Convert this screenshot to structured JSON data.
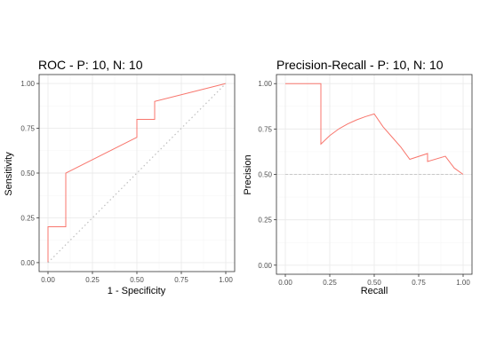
{
  "chart_data": [
    {
      "type": "line",
      "title": "ROC - P: 10, N: 10",
      "xlabel": "1 - Specificity",
      "ylabel": "Sensitivity",
      "xlim": [
        0,
        1
      ],
      "ylim": [
        0,
        1
      ],
      "x_ticks": [
        "0.00",
        "0.25",
        "0.50",
        "0.75",
        "1.00"
      ],
      "y_ticks": [
        "0.00",
        "0.25",
        "0.50",
        "0.75",
        "1.00"
      ],
      "grid": true,
      "legend": "none",
      "series": [
        {
          "color": "#F8766D",
          "line": "solid",
          "points": [
            [
              0,
              0
            ],
            [
              0,
              0.2
            ],
            [
              0.1,
              0.2
            ],
            [
              0.1,
              0.5
            ],
            [
              0.5,
              0.7
            ],
            [
              0.5,
              0.8
            ],
            [
              0.6,
              0.8
            ],
            [
              0.6,
              0.9
            ],
            [
              1,
              1
            ]
          ]
        },
        {
          "color": "#bfbfbf",
          "line": "dotted",
          "points": [
            [
              0,
              0
            ],
            [
              1,
              1
            ]
          ]
        }
      ]
    },
    {
      "type": "line",
      "title": "Precision-Recall - P: 10, N: 10",
      "xlabel": "Recall",
      "ylabel": "Precision",
      "xlim": [
        0,
        1
      ],
      "ylim": [
        0,
        1
      ],
      "x_ticks": [
        "0.00",
        "0.25",
        "0.50",
        "0.75",
        "1.00"
      ],
      "y_ticks": [
        "0.00",
        "0.25",
        "0.50",
        "0.75",
        "1.00"
      ],
      "grid": true,
      "legend": "none",
      "series": [
        {
          "color": "#F8766D",
          "line": "solid",
          "points": [
            [
              0,
              1
            ],
            [
              0.2,
              1
            ],
            [
              0.2,
              0.667
            ],
            [
              0.25,
              0.714
            ],
            [
              0.3,
              0.75
            ],
            [
              0.35,
              0.778
            ],
            [
              0.4,
              0.8
            ],
            [
              0.45,
              0.818
            ],
            [
              0.5,
              0.833
            ],
            [
              0.55,
              0.762
            ],
            [
              0.6,
              0.706
            ],
            [
              0.65,
              0.65
            ],
            [
              0.7,
              0.583
            ],
            [
              0.8,
              0.615
            ],
            [
              0.8,
              0.571
            ],
            [
              0.9,
              0.6
            ],
            [
              0.95,
              0.535
            ],
            [
              1,
              0.5
            ]
          ]
        },
        {
          "color": "#bfbfbf",
          "line": "dashed",
          "points": [
            [
              0,
              0.5
            ],
            [
              1,
              0.5
            ]
          ]
        }
      ]
    }
  ]
}
